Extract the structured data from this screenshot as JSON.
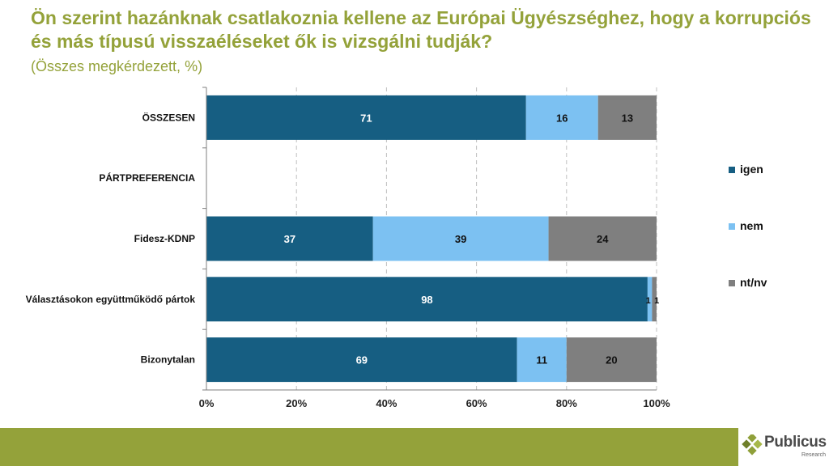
{
  "title": "Ön szerint hazánknak csatlakoznia kellene az Európai Ügyészséghez, hogy a korrupciós és más típusú visszaéléseket ők is vizsgálni tudják?",
  "subtitle": "(Összes megkérdezett, %)",
  "logo": {
    "name": "Publicus",
    "sub": "Research"
  },
  "colors": {
    "igen": "#165e82",
    "nem": "#7cc1f2",
    "ntnv": "#7f7f7f",
    "accent": "#94a23a"
  },
  "chart_data": {
    "type": "bar",
    "orientation": "horizontal",
    "stacked": true,
    "categories": [
      "ÖSSZESEN",
      "PÁRTPREFERENCIA",
      "Fidesz-KDNP",
      "Választásokon együttműködő pártok",
      "Bizonytalan"
    ],
    "series": [
      {
        "name": "igen",
        "color": "#165e82",
        "values": [
          71,
          null,
          37,
          98,
          69
        ],
        "labels": [
          "71",
          "",
          "37",
          "98",
          "69"
        ]
      },
      {
        "name": "nem",
        "color": "#7cc1f2",
        "values": [
          16,
          null,
          39,
          1,
          11
        ],
        "labels": [
          "16",
          "",
          "39",
          "1",
          "11"
        ]
      },
      {
        "name": "nt/nv",
        "color": "#7f7f7f",
        "values": [
          13,
          null,
          24,
          1,
          20
        ],
        "labels": [
          "13",
          "",
          "24",
          "1",
          "20"
        ]
      }
    ],
    "xticks": [
      "0%",
      "20%",
      "40%",
      "60%",
      "80%",
      "100%"
    ],
    "xlim": [
      0,
      100
    ],
    "grid": true,
    "legend_position": "right"
  }
}
